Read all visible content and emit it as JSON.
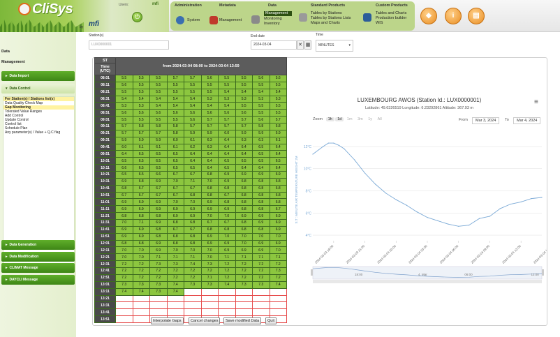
{
  "app": {
    "name": "CliSys",
    "by": "by",
    "company": "mfi"
  },
  "user": {
    "label": "Users:",
    "name": "mfi"
  },
  "menu": {
    "administration": {
      "title": "Administration",
      "items": [
        "System"
      ]
    },
    "metadata": {
      "title": "Metadata",
      "items": [
        "Management"
      ]
    },
    "data": {
      "title": "Data",
      "items": [
        "Management",
        "Monitoring",
        "Inventory"
      ],
      "selected": "Management"
    },
    "standard_products": {
      "title": "Standard Products",
      "items": [
        "Tables by Stations",
        "Tables by Stations Lists",
        "Maps and Charts"
      ]
    },
    "custom_products": {
      "title": "Custom Products",
      "items": [
        "Tables and Charts",
        "Production builder",
        "WIS"
      ]
    }
  },
  "sidebar": {
    "title": "Data",
    "subtitle": "Management",
    "data_import": "Data Import",
    "data_control": "Data Control",
    "list": [
      "For Station(s) / Stations list(s)",
      "Data Quality Check Map",
      "Gap Monitoring",
      "Tolerated Value Ranges",
      "Add Control",
      "Update Control",
      "Control list",
      "Schedule Plan",
      "Any parameter(s) / Value + Q.C flag"
    ],
    "highlighted": [
      "For Station(s) / Stations list(s)",
      "Gap Monitoring"
    ],
    "bottom_buttons": [
      "Data Generation",
      "Data Modification",
      "CLIMAT Message",
      "DAYCLI Message"
    ]
  },
  "filters": {
    "station_label": "Station(s)",
    "station_value": "LUX0000001",
    "enddate_label": "End date",
    "enddate_value": "2024-03-04",
    "step_label": "Time",
    "step_value": "MINUTES"
  },
  "table": {
    "st_header": "ST",
    "time_header": "Time (UTC)",
    "range_header": "from 2024-03-04 08:00 to 2024-03-04 13:59",
    "rows": [
      {
        "t": "08:01",
        "v": [
          "5.5",
          "5.5",
          "5.5",
          "5.7",
          "5.7",
          "5.6",
          "5.5",
          "5.5",
          "5.6",
          "5.6"
        ]
      },
      {
        "t": "08:11",
        "v": [
          "5.6",
          "5.5",
          "5.5",
          "5.5",
          "5.5",
          "5.5",
          "5.5",
          "5.5",
          "5.5",
          "5.5"
        ]
      },
      {
        "t": "08:21",
        "v": [
          "5.5",
          "5.5",
          "5.5",
          "5.5",
          "5.5",
          "5.5",
          "5.4",
          "5.4",
          "5.4",
          "5.4"
        ]
      },
      {
        "t": "08:31",
        "v": [
          "5.4",
          "5.4",
          "5.4",
          "5.4",
          "5.4",
          "5.3",
          "5.3",
          "5.3",
          "5.3",
          "5.3"
        ]
      },
      {
        "t": "08:41",
        "v": [
          "5.3",
          "5.3",
          "5.4",
          "5.4",
          "5.4",
          "5.4",
          "5.4",
          "5.5",
          "5.5",
          "5.5"
        ]
      },
      {
        "t": "08:51",
        "v": [
          "5.6",
          "5.6",
          "5.6",
          "5.6",
          "5.6",
          "5.6",
          "5.6",
          "5.6",
          "5.5",
          "5.5"
        ]
      },
      {
        "t": "09:01",
        "v": [
          "5.5",
          "5.5",
          "5.5",
          "5.5",
          "5.6",
          "5.7",
          "5.7",
          "5.7",
          "5.6",
          "5.7"
        ]
      },
      {
        "t": "09:11",
        "v": [
          "5.7",
          "5.8",
          "5.8",
          "5.8",
          "5.7",
          "5.7",
          "5.7",
          "5.7",
          "5.8",
          "5.8"
        ]
      },
      {
        "t": "09:21",
        "v": [
          "5.7",
          "5.7",
          "5.7",
          "5.8",
          "5.9",
          "5.9",
          "6.0",
          "5.9",
          "5.9",
          "5.9"
        ]
      },
      {
        "t": "09:31",
        "v": [
          "5.9",
          "5.9",
          "5.9",
          "6.0",
          "6.1",
          "6.3",
          "6.4",
          "6.3",
          "6.3",
          "6.1"
        ]
      },
      {
        "t": "09:41",
        "v": [
          "6.0",
          "6.1",
          "6.1",
          "6.1",
          "6.2",
          "6.3",
          "6.4",
          "6.4",
          "6.5",
          "6.4"
        ]
      },
      {
        "t": "09:51",
        "v": [
          "6.4",
          "6.5",
          "6.5",
          "6.5",
          "6.4",
          "6.4",
          "6.4",
          "6.4",
          "6.5",
          "6.4"
        ]
      },
      {
        "t": "10:01",
        "v": [
          "6.5",
          "6.5",
          "6.5",
          "6.5",
          "6.4",
          "6.4",
          "6.5",
          "6.5",
          "6.5",
          "6.5"
        ]
      },
      {
        "t": "10:11",
        "v": [
          "6.6",
          "6.5",
          "6.5",
          "6.5",
          "6.5",
          "6.4",
          "6.5",
          "6.4",
          "6.4",
          "6.4"
        ]
      },
      {
        "t": "10:21",
        "v": [
          "6.5",
          "6.5",
          "6.6",
          "6.7",
          "6.7",
          "6.8",
          "6.9",
          "6.9",
          "6.9",
          "6.9"
        ]
      },
      {
        "t": "10:31",
        "v": [
          "6.9",
          "6.8",
          "6.9",
          "7.0",
          "7.1",
          "7.0",
          "6.9",
          "6.8",
          "6.8",
          "6.8"
        ]
      },
      {
        "t": "10:41",
        "v": [
          "6.8",
          "6.7",
          "6.7",
          "6.7",
          "6.7",
          "6.8",
          "6.8",
          "6.8",
          "6.8",
          "6.8"
        ]
      },
      {
        "t": "10:51",
        "v": [
          "6.7",
          "6.7",
          "6.7",
          "6.7",
          "6.8",
          "6.8",
          "6.7",
          "6.8",
          "6.8",
          "6.8"
        ]
      },
      {
        "t": "11:01",
        "v": [
          "6.9",
          "6.9",
          "6.9",
          "7.0",
          "7.0",
          "6.9",
          "6.8",
          "6.8",
          "6.8",
          "6.8"
        ]
      },
      {
        "t": "11:11",
        "v": [
          "6.9",
          "6.9",
          "6.9",
          "6.9",
          "6.9",
          "6.9",
          "6.9",
          "6.8",
          "6.8",
          "6.7"
        ]
      },
      {
        "t": "11:21",
        "v": [
          "6.8",
          "6.8",
          "6.8",
          "6.9",
          "6.9",
          "7.0",
          "7.0",
          "6.9",
          "6.9",
          "6.9"
        ]
      },
      {
        "t": "11:31",
        "v": [
          "7.0",
          "7.1",
          "6.9",
          "6.8",
          "6.8",
          "6.7",
          "6.7",
          "6.8",
          "6.9",
          "6.9"
        ]
      },
      {
        "t": "11:41",
        "v": [
          "6.9",
          "6.9",
          "6.8",
          "6.7",
          "6.7",
          "6.8",
          "6.8",
          "6.8",
          "6.8",
          "6.9"
        ]
      },
      {
        "t": "11:51",
        "v": [
          "6.9",
          "6.9",
          "6.8",
          "6.8",
          "6.8",
          "6.9",
          "7.0",
          "7.0",
          "7.0",
          "7.0"
        ]
      },
      {
        "t": "12:01",
        "v": [
          "6.8",
          "6.8",
          "6.9",
          "6.8",
          "6.8",
          "6.9",
          "6.9",
          "7.0",
          "6.9",
          "6.9"
        ]
      },
      {
        "t": "12:11",
        "v": [
          "7.0",
          "7.0",
          "6.9",
          "7.0",
          "7.0",
          "7.0",
          "6.9",
          "6.9",
          "6.9",
          "7.0"
        ]
      },
      {
        "t": "12:21",
        "v": [
          "7.0",
          "7.0",
          "7.1",
          "7.1",
          "7.1",
          "7.0",
          "7.1",
          "7.1",
          "7.1",
          "7.1"
        ]
      },
      {
        "t": "12:31",
        "v": [
          "7.2",
          "7.2",
          "7.3",
          "7.3",
          "7.4",
          "7.3",
          "7.2",
          "7.2",
          "7.2",
          "7.2"
        ]
      },
      {
        "t": "12:41",
        "v": [
          "7.2",
          "7.2",
          "7.2",
          "7.2",
          "7.2",
          "7.2",
          "7.2",
          "7.2",
          "7.2",
          "7.3"
        ]
      },
      {
        "t": "12:51",
        "v": [
          "7.2",
          "7.2",
          "7.2",
          "7.2",
          "7.2",
          "7.1",
          "7.2",
          "7.2",
          "7.2",
          "7.2"
        ]
      },
      {
        "t": "13:01",
        "v": [
          "7.3",
          "7.3",
          "7.3",
          "7.4",
          "7.3",
          "7.3",
          "7.4",
          "7.3",
          "7.3",
          "7.4"
        ]
      },
      {
        "t": "13:11",
        "v": [
          "7.4",
          "7.4",
          "7.3",
          "7.4",
          "",
          "",
          "",
          "",
          "",
          ""
        ]
      },
      {
        "t": "13:21",
        "v": [
          "",
          "",
          "",
          "",
          "",
          "",
          "",
          "",
          "",
          ""
        ]
      },
      {
        "t": "13:31",
        "v": [
          "",
          "",
          "",
          "",
          "",
          "",
          "",
          "",
          "",
          ""
        ]
      },
      {
        "t": "13:41",
        "v": [
          "",
          "",
          "",
          "",
          "",
          "",
          "",
          "",
          "",
          ""
        ]
      },
      {
        "t": "13:51",
        "v": [
          "",
          "",
          "",
          "",
          "",
          "",
          "",
          "",
          "",
          ""
        ]
      }
    ]
  },
  "chart_data": {
    "type": "line",
    "title": "LUXEMBOURG AWOS (Station Id.: LUX0000001)",
    "subtitle": "Latitude: 49.6326519 Longitude: 6.23292861 Altitude: 367.93 m",
    "ylabel": "S.T : MINUTE AIR TEMPERATURE HEIGHT 2M",
    "x_ticks": [
      "2024-03-03 18:00",
      "2024-03-03 21:00",
      "2024-03-04 00:00",
      "2024-03-04 03:00",
      "2024-03-04 06:00",
      "2024-03-04 09:00",
      "2024-03-04 12:00",
      "2024-03-04 15:00"
    ],
    "y_ticks": [
      "12°C",
      "10°C",
      "8°C",
      "6°C",
      "4°C"
    ],
    "ylim": [
      3.5,
      13
    ],
    "x_range": [
      "2024-03-03 16:00",
      "2024-03-04 14:00"
    ],
    "series": [
      {
        "x": [
          "2024-03-03 16:00",
          "2024-03-03 17:00",
          "2024-03-03 17:30",
          "2024-03-03 18:00",
          "2024-03-03 18:30",
          "2024-03-03 19:00",
          "2024-03-03 20:00",
          "2024-03-03 21:00",
          "2024-03-03 22:00",
          "2024-03-03 23:00",
          "2024-03-04 00:00",
          "2024-03-04 01:00",
          "2024-03-04 02:00",
          "2024-03-04 03:00",
          "2024-03-04 04:00",
          "2024-03-04 05:00",
          "2024-03-04 06:00",
          "2024-03-04 07:00",
          "2024-03-04 08:00",
          "2024-03-04 09:00",
          "2024-03-04 10:00",
          "2024-03-04 11:00",
          "2024-03-04 12:00",
          "2024-03-04 13:00",
          "2024-03-04 14:00"
        ],
        "values": [
          11.3,
          12.0,
          12.3,
          12.3,
          12.1,
          11.8,
          10.8,
          9.6,
          8.6,
          7.8,
          7.2,
          6.7,
          6.1,
          5.6,
          5.3,
          5.0,
          4.8,
          4.9,
          5.5,
          5.7,
          6.4,
          6.8,
          7.0,
          7.3,
          7.4
        ]
      }
    ],
    "navigator": {
      "labels": [
        "18:00",
        "4. Mar",
        "06:00",
        "12:00"
      ]
    },
    "grid": true,
    "legend": "none"
  },
  "zoom": {
    "label": "Zoom",
    "options": [
      "1h",
      "1d",
      "1m",
      "3m",
      "1y",
      "All"
    ],
    "active": [
      "1h",
      "1d"
    ],
    "from_label": "From",
    "from_value": "Mar 3, 2024",
    "to_label": "To",
    "to_value": "Mar 4, 2024"
  },
  "buttons": {
    "interpolate": "Interpolate Gaps",
    "cancel": "Cancel changes",
    "save": "Save modified Data",
    "quit": "Quit"
  },
  "colors": {
    "value_cell": "#8cc63f",
    "time_cell": "#4a4a4a",
    "missing_border": "#e64b4b",
    "line": "#7aa9d6",
    "sidebar_button": "#4c9a20"
  }
}
